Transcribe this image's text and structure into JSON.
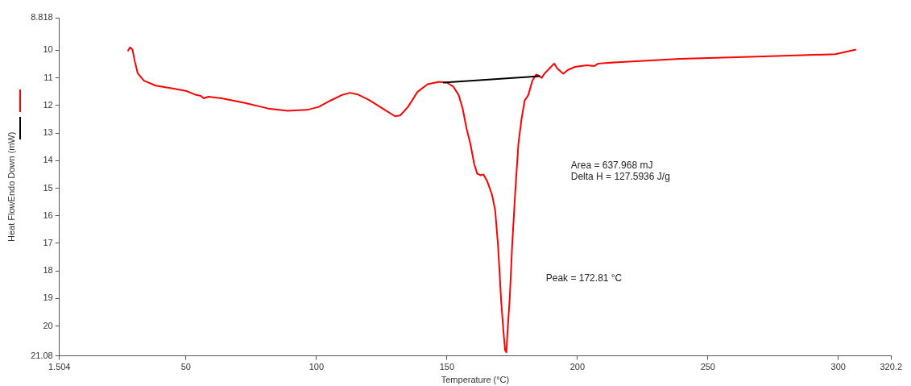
{
  "chart_data": {
    "type": "line",
    "xlabel": "Temperature (°C)",
    "ylabel": "Heat FlowEndo Down (mW)",
    "xlim": [
      1.504,
      320.2
    ],
    "ylim": [
      21.08,
      8.818
    ],
    "xticks": [
      1.504,
      50,
      100,
      150,
      200,
      250,
      300,
      320.2
    ],
    "yticks": [
      8.818,
      10,
      11,
      12,
      13,
      14,
      15,
      16,
      17,
      18,
      19,
      20,
      21.08
    ],
    "grid": false,
    "legend": false,
    "marker": "none",
    "line_style": "solid",
    "series": [
      {
        "color": "#ff0000",
        "x": [
          27.7,
          28.6,
          29.5,
          30.4,
          31.5,
          33.9,
          38.4,
          45.8,
          50.3,
          53.3,
          55.7,
          56.8,
          58.6,
          63.7,
          72.6,
          81.5,
          89,
          96.4,
          100.9,
          105.4,
          109.8,
          112.8,
          115.8,
          120.2,
          126.2,
          130.1,
          132.1,
          135.1,
          138.7,
          142.6,
          147,
          150,
          152.4,
          154.5,
          156,
          157.5,
          159,
          160.4,
          161.6,
          162.8,
          164,
          165.5,
          167.3,
          168.5,
          169.6,
          170.8,
          171.7,
          172.3,
          172.8,
          173.2,
          174.1,
          175,
          176.2,
          177.4,
          178.6,
          179.8,
          181.2,
          182.7,
          184.2,
          185.1,
          186.3,
          187.5,
          189.3,
          191.1,
          192.3,
          194.6,
          196.4,
          199.1,
          203.6,
          206.5,
          208,
          215.5,
          239.3,
          269,
          298.8,
          306.8
        ],
        "values": [
          10.03,
          9.89,
          9.97,
          10.4,
          10.83,
          11.1,
          11.28,
          11.4,
          11.48,
          11.6,
          11.65,
          11.74,
          11.68,
          11.74,
          11.91,
          12.11,
          12.19,
          12.16,
          12.05,
          11.82,
          11.62,
          11.54,
          11.6,
          11.8,
          12.16,
          12.39,
          12.36,
          12.05,
          11.51,
          11.23,
          11.14,
          11.17,
          11.31,
          11.62,
          12.1,
          12.82,
          13.39,
          14.1,
          14.47,
          14.53,
          14.5,
          14.76,
          15.24,
          15.81,
          17.09,
          19.1,
          20.23,
          20.88,
          20.95,
          20.23,
          18.95,
          17.09,
          15.1,
          13.39,
          12.48,
          11.82,
          11.62,
          11.11,
          10.88,
          10.91,
          11,
          10.83,
          10.66,
          10.48,
          10.66,
          10.85,
          10.71,
          10.6,
          10.54,
          10.57,
          10.48,
          10.43,
          10.31,
          10.23,
          10.14,
          9.97
        ]
      },
      {
        "type": "line",
        "color": "#000000",
        "x": [
          148.5,
          185.7
        ],
        "values": [
          11.17,
          10.94
        ]
      }
    ],
    "annotations": [
      "Area = 637.968 mJ",
      "Delta H = 127.5936 J/g",
      "Peak = 172.81 °C"
    ]
  }
}
